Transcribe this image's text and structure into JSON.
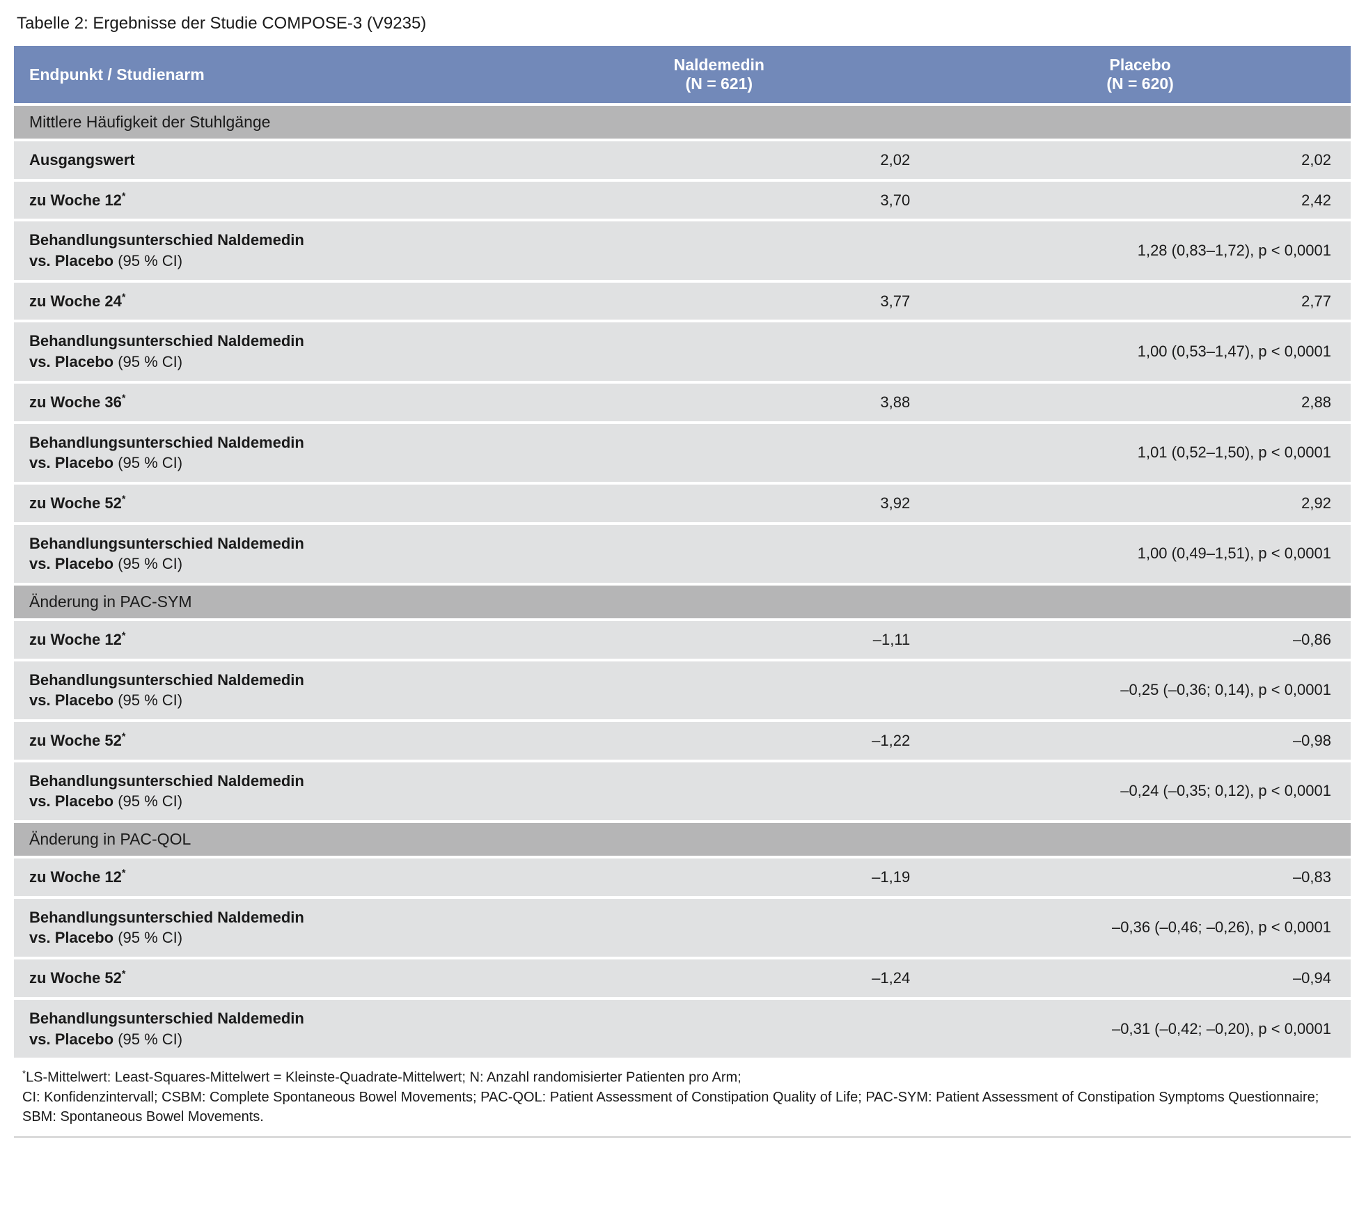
{
  "caption": "Tabelle 2: Ergebnisse der Studie COMPOSE-3 (V9235)",
  "colors": {
    "header_bg": "#7289b9",
    "header_fg": "#ffffff",
    "section_bg": "#b5b5b6",
    "row_bg": "#e0e1e2",
    "page_bg": "#ffffff",
    "text": "#1a1a1a"
  },
  "columns": {
    "c0": "Endpunkt / Studienarm",
    "c1_line1": "Naldemedin",
    "c1_line2": "(N = 621)",
    "c2_line1": "Placebo",
    "c2_line2": "(N = 620)"
  },
  "sections": [
    {
      "title": "Mittlere Häufigkeit der Stuhlgänge",
      "rows": [
        {
          "type": "pair",
          "label_bold": "Ausgangswert",
          "label_thin": "",
          "sup": false,
          "v1": "2,02",
          "v2": "2,02"
        },
        {
          "type": "pair",
          "label_bold": "zu Woche 12",
          "label_thin": "",
          "sup": true,
          "v1": "3,70",
          "v2": "2,42"
        },
        {
          "type": "span",
          "label_bold": "Behandlungsunterschied Naldemedin vs. Placebo",
          "label_thin": " (95 % CI)",
          "val": "1,28 (0,83–1,72), p < 0,0001"
        },
        {
          "type": "pair",
          "label_bold": "zu Woche 24",
          "label_thin": "",
          "sup": true,
          "v1": "3,77",
          "v2": "2,77"
        },
        {
          "type": "span",
          "label_bold": "Behandlungsunterschied Naldemedin vs. Placebo",
          "label_thin": " (95 % CI)",
          "val": "1,00 (0,53–1,47), p < 0,0001"
        },
        {
          "type": "pair",
          "label_bold": "zu Woche 36",
          "label_thin": "",
          "sup": true,
          "v1": "3,88",
          "v2": "2,88"
        },
        {
          "type": "span",
          "label_bold": "Behandlungsunterschied Naldemedin vs. Placebo",
          "label_thin": " (95 % CI)",
          "val": "1,01 (0,52–1,50), p < 0,0001"
        },
        {
          "type": "pair",
          "label_bold": "zu Woche 52",
          "label_thin": "",
          "sup": true,
          "v1": "3,92",
          "v2": "2,92"
        },
        {
          "type": "span",
          "label_bold": "Behandlungsunterschied Naldemedin vs. Placebo",
          "label_thin": " (95 % CI)",
          "val": "1,00 (0,49–1,51), p < 0,0001"
        }
      ]
    },
    {
      "title": "Änderung in PAC-SYM",
      "rows": [
        {
          "type": "pair",
          "label_bold": "zu Woche 12",
          "label_thin": "",
          "sup": true,
          "v1": "–1,11",
          "v2": "–0,86"
        },
        {
          "type": "span",
          "label_bold": "Behandlungsunterschied Naldemedin vs. Placebo",
          "label_thin": " (95 % CI)",
          "val": "–0,25 (–0,36; 0,14), p < 0,0001"
        },
        {
          "type": "pair",
          "label_bold": "zu Woche 52",
          "label_thin": "",
          "sup": true,
          "v1": "–1,22",
          "v2": "–0,98"
        },
        {
          "type": "span",
          "label_bold": "Behandlungsunterschied Naldemedin vs. Placebo",
          "label_thin": " (95 % CI)",
          "val": "–0,24 (–0,35; 0,12), p < 0,0001"
        }
      ]
    },
    {
      "title": "Änderung in PAC-QOL",
      "rows": [
        {
          "type": "pair",
          "label_bold": "zu Woche 12",
          "label_thin": "",
          "sup": true,
          "v1": "–1,19",
          "v2": "–0,83"
        },
        {
          "type": "span",
          "label_bold": "Behandlungsunterschied Naldemedin vs. Placebo",
          "label_thin": " (95 % CI)",
          "val": "–0,36 (–0,46; –0,26), p < 0,0001"
        },
        {
          "type": "pair",
          "label_bold": "zu Woche 52",
          "label_thin": "",
          "sup": true,
          "v1": "–1,24",
          "v2": "–0,94"
        },
        {
          "type": "span",
          "label_bold": "Behandlungsunterschied Naldemedin vs. Placebo",
          "label_thin": " (95 % CI)",
          "val": "–0,31 (–0,42; –0,20), p < 0,0001"
        }
      ]
    }
  ],
  "footnote_sup": "*",
  "footnote_l1": "LS-Mittelwert: Least-Squares-Mittelwert = Kleinste-Quadrate-Mittelwert; N: Anzahl randomisierter Patienten pro Arm;",
  "footnote_l2": "CI: Konfidenzintervall; CSBM: Complete Spontaneous Bowel Movements; PAC-QOL: Patient Assessment of Constipation Quality of Life; PAC-SYM: Patient Assessment of Constipation Symptoms Questionnaire; SBM: Spontaneous Bowel Movements."
}
